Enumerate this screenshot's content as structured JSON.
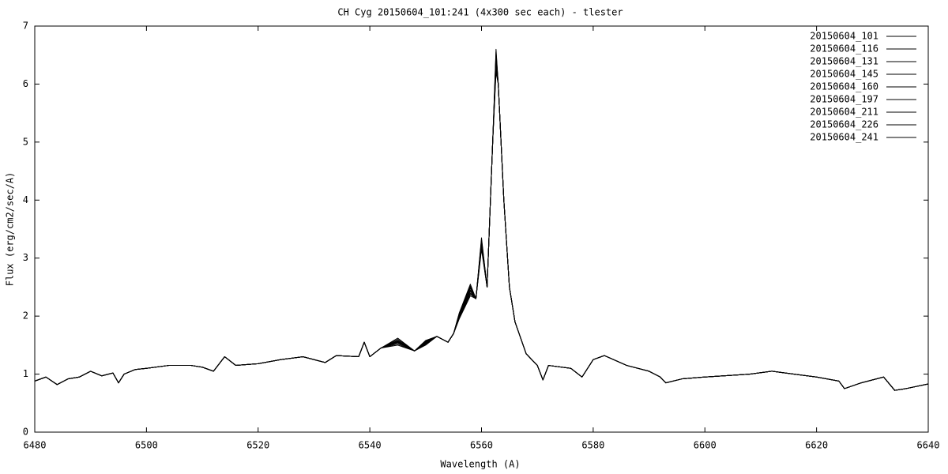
{
  "chart_data": {
    "type": "line",
    "title": "CH Cyg 20150604_101:241 (4x300 sec each) - tlester",
    "x_label": "Wavelength (A)",
    "y_label": "Flux (erg/cm2/sec/A)",
    "xlim": [
      6480,
      6640
    ],
    "xticks": [
      6480,
      6500,
      6520,
      6540,
      6560,
      6580,
      6600,
      6620,
      6640
    ],
    "ylim": [
      0,
      7
    ],
    "yticks": [
      0,
      1,
      2,
      3,
      4,
      5,
      6,
      7
    ],
    "grid": false,
    "legend": "top-right",
    "x": [
      6480,
      6482,
      6484,
      6486,
      6488,
      6490,
      6492,
      6494,
      6495,
      6496,
      6498,
      6500,
      6504,
      6508,
      6510,
      6512,
      6514,
      6516,
      6520,
      6524,
      6528,
      6532,
      6534,
      6538,
      6539,
      6540,
      6542,
      6545,
      6548,
      6550,
      6552,
      6554,
      6555,
      6556,
      6558,
      6559,
      6560,
      6561,
      6562,
      6562.6,
      6563,
      6564,
      6565,
      6566,
      6568,
      6570,
      6571,
      6572,
      6576,
      6578,
      6580,
      6582,
      6586,
      6590,
      6592,
      6593,
      6596,
      6600,
      6608,
      6612,
      6616,
      6620,
      6624,
      6625,
      6628,
      6632,
      6634,
      6636,
      6640
    ],
    "series": [
      {
        "name": "20150604_101",
        "color": "#000000",
        "values": [
          0.88,
          0.95,
          0.82,
          0.92,
          0.95,
          1.05,
          0.97,
          1.02,
          0.85,
          1.0,
          1.08,
          1.1,
          1.15,
          1.15,
          1.12,
          1.05,
          1.3,
          1.15,
          1.18,
          1.25,
          1.3,
          1.2,
          1.32,
          1.3,
          1.55,
          1.3,
          1.45,
          1.62,
          1.4,
          1.58,
          1.65,
          1.55,
          1.7,
          2.05,
          2.55,
          2.3,
          3.35,
          2.5,
          5.0,
          6.6,
          6.0,
          4.0,
          2.5,
          1.9,
          1.35,
          1.15,
          0.9,
          1.15,
          1.1,
          0.95,
          1.25,
          1.32,
          1.15,
          1.05,
          0.95,
          0.85,
          0.92,
          0.95,
          1.0,
          1.05,
          1.0,
          0.95,
          0.88,
          0.75,
          0.85,
          0.95,
          0.72,
          0.75,
          0.83
        ]
      },
      {
        "name": "20150604_116",
        "color": "#000000",
        "values": [
          0.88,
          0.95,
          0.82,
          0.92,
          0.95,
          1.05,
          0.97,
          1.02,
          0.85,
          1.0,
          1.08,
          1.1,
          1.15,
          1.15,
          1.12,
          1.05,
          1.3,
          1.15,
          1.18,
          1.25,
          1.3,
          1.2,
          1.32,
          1.3,
          1.55,
          1.3,
          1.45,
          1.6,
          1.4,
          1.57,
          1.65,
          1.55,
          1.7,
          2.04,
          2.52,
          2.3,
          3.32,
          2.5,
          5.0,
          6.55,
          6.0,
          4.0,
          2.5,
          1.9,
          1.35,
          1.15,
          0.9,
          1.15,
          1.1,
          0.95,
          1.25,
          1.32,
          1.15,
          1.05,
          0.95,
          0.85,
          0.92,
          0.95,
          1.0,
          1.05,
          1.0,
          0.95,
          0.88,
          0.75,
          0.85,
          0.95,
          0.72,
          0.75,
          0.83
        ]
      },
      {
        "name": "20150604_131",
        "color": "#000000",
        "values": [
          0.88,
          0.95,
          0.82,
          0.92,
          0.95,
          1.05,
          0.97,
          1.02,
          0.85,
          1.0,
          1.08,
          1.1,
          1.15,
          1.15,
          1.12,
          1.05,
          1.3,
          1.15,
          1.18,
          1.25,
          1.3,
          1.2,
          1.32,
          1.3,
          1.55,
          1.3,
          1.45,
          1.58,
          1.4,
          1.56,
          1.65,
          1.55,
          1.7,
          2.03,
          2.5,
          2.3,
          3.3,
          2.5,
          5.0,
          6.5,
          6.0,
          4.0,
          2.5,
          1.9,
          1.35,
          1.15,
          0.9,
          1.15,
          1.1,
          0.95,
          1.25,
          1.32,
          1.15,
          1.05,
          0.95,
          0.85,
          0.92,
          0.95,
          1.0,
          1.05,
          1.0,
          0.95,
          0.88,
          0.75,
          0.85,
          0.95,
          0.72,
          0.75,
          0.83
        ]
      },
      {
        "name": "20150604_145",
        "color": "#000000",
        "values": [
          0.88,
          0.95,
          0.82,
          0.92,
          0.95,
          1.05,
          0.97,
          1.02,
          0.85,
          1.0,
          1.08,
          1.1,
          1.15,
          1.15,
          1.12,
          1.05,
          1.3,
          1.15,
          1.18,
          1.25,
          1.3,
          1.2,
          1.32,
          1.3,
          1.55,
          1.3,
          1.45,
          1.57,
          1.4,
          1.55,
          1.65,
          1.55,
          1.7,
          2.02,
          2.48,
          2.3,
          3.28,
          2.5,
          5.0,
          6.45,
          6.0,
          4.0,
          2.5,
          1.9,
          1.35,
          1.15,
          0.9,
          1.15,
          1.1,
          0.95,
          1.25,
          1.32,
          1.15,
          1.05,
          0.95,
          0.85,
          0.92,
          0.95,
          1.0,
          1.05,
          1.0,
          0.95,
          0.88,
          0.75,
          0.85,
          0.95,
          0.72,
          0.75,
          0.83
        ]
      },
      {
        "name": "20150604_160",
        "color": "#000000",
        "values": [
          0.88,
          0.95,
          0.82,
          0.92,
          0.95,
          1.05,
          0.97,
          1.02,
          0.85,
          1.0,
          1.08,
          1.1,
          1.15,
          1.15,
          1.12,
          1.05,
          1.3,
          1.15,
          1.18,
          1.25,
          1.3,
          1.2,
          1.32,
          1.3,
          1.55,
          1.3,
          1.45,
          1.56,
          1.4,
          1.54,
          1.65,
          1.55,
          1.7,
          2.0,
          2.45,
          2.3,
          3.25,
          2.5,
          5.0,
          6.4,
          6.0,
          4.0,
          2.5,
          1.9,
          1.35,
          1.15,
          0.9,
          1.15,
          1.1,
          0.95,
          1.25,
          1.32,
          1.15,
          1.05,
          0.95,
          0.85,
          0.92,
          0.95,
          1.0,
          1.05,
          1.0,
          0.95,
          0.88,
          0.75,
          0.85,
          0.95,
          0.72,
          0.75,
          0.83
        ]
      },
      {
        "name": "20150604_197",
        "color": "#000000",
        "values": [
          0.88,
          0.95,
          0.82,
          0.92,
          0.95,
          1.05,
          0.97,
          1.02,
          0.85,
          1.0,
          1.08,
          1.1,
          1.15,
          1.15,
          1.12,
          1.05,
          1.3,
          1.15,
          1.18,
          1.25,
          1.3,
          1.2,
          1.32,
          1.3,
          1.55,
          1.3,
          1.45,
          1.55,
          1.4,
          1.53,
          1.65,
          1.55,
          1.7,
          1.98,
          2.43,
          2.3,
          3.22,
          2.5,
          5.0,
          6.35,
          6.0,
          4.0,
          2.5,
          1.9,
          1.35,
          1.15,
          0.9,
          1.15,
          1.1,
          0.95,
          1.25,
          1.32,
          1.15,
          1.05,
          0.95,
          0.85,
          0.92,
          0.95,
          1.0,
          1.05,
          1.0,
          0.95,
          0.88,
          0.75,
          0.85,
          0.95,
          0.72,
          0.75,
          0.83
        ]
      },
      {
        "name": "20150604_211",
        "color": "#000000",
        "values": [
          0.88,
          0.95,
          0.82,
          0.92,
          0.95,
          1.05,
          0.97,
          1.02,
          0.85,
          1.0,
          1.08,
          1.1,
          1.15,
          1.15,
          1.12,
          1.05,
          1.3,
          1.15,
          1.18,
          1.25,
          1.3,
          1.2,
          1.32,
          1.3,
          1.55,
          1.3,
          1.45,
          1.54,
          1.4,
          1.52,
          1.65,
          1.55,
          1.7,
          1.97,
          2.4,
          2.3,
          3.2,
          2.5,
          5.0,
          6.3,
          6.0,
          4.0,
          2.5,
          1.9,
          1.35,
          1.15,
          0.9,
          1.15,
          1.1,
          0.95,
          1.25,
          1.32,
          1.15,
          1.05,
          0.95,
          0.85,
          0.92,
          0.95,
          1.0,
          1.05,
          1.0,
          0.95,
          0.88,
          0.75,
          0.85,
          0.95,
          0.72,
          0.75,
          0.83
        ]
      },
      {
        "name": "20150604_226",
        "color": "#000000",
        "values": [
          0.88,
          0.95,
          0.82,
          0.92,
          0.95,
          1.05,
          0.97,
          1.02,
          0.85,
          1.0,
          1.08,
          1.1,
          1.15,
          1.15,
          1.12,
          1.05,
          1.3,
          1.15,
          1.18,
          1.25,
          1.3,
          1.2,
          1.32,
          1.3,
          1.55,
          1.3,
          1.45,
          1.52,
          1.4,
          1.51,
          1.65,
          1.55,
          1.7,
          1.96,
          2.38,
          2.3,
          3.18,
          2.5,
          5.0,
          6.25,
          6.0,
          4.0,
          2.5,
          1.9,
          1.35,
          1.15,
          0.9,
          1.15,
          1.1,
          0.95,
          1.25,
          1.32,
          1.15,
          1.05,
          0.95,
          0.85,
          0.92,
          0.95,
          1.0,
          1.05,
          1.0,
          0.95,
          0.88,
          0.75,
          0.85,
          0.95,
          0.72,
          0.75,
          0.83
        ]
      },
      {
        "name": "20150604_241",
        "color": "#000000",
        "values": [
          0.88,
          0.95,
          0.82,
          0.92,
          0.95,
          1.05,
          0.97,
          1.02,
          0.85,
          1.0,
          1.08,
          1.1,
          1.15,
          1.15,
          1.12,
          1.05,
          1.3,
          1.15,
          1.18,
          1.25,
          1.3,
          1.2,
          1.32,
          1.3,
          1.55,
          1.3,
          1.45,
          1.5,
          1.4,
          1.5,
          1.65,
          1.55,
          1.7,
          1.95,
          2.35,
          2.3,
          3.15,
          2.5,
          5.0,
          6.2,
          6.0,
          4.0,
          2.5,
          1.9,
          1.35,
          1.15,
          0.9,
          1.15,
          1.1,
          0.95,
          1.25,
          1.32,
          1.15,
          1.05,
          0.95,
          0.85,
          0.92,
          0.95,
          1.0,
          1.05,
          1.0,
          0.95,
          0.88,
          0.75,
          0.85,
          0.95,
          0.72,
          0.75,
          0.83
        ]
      }
    ]
  }
}
